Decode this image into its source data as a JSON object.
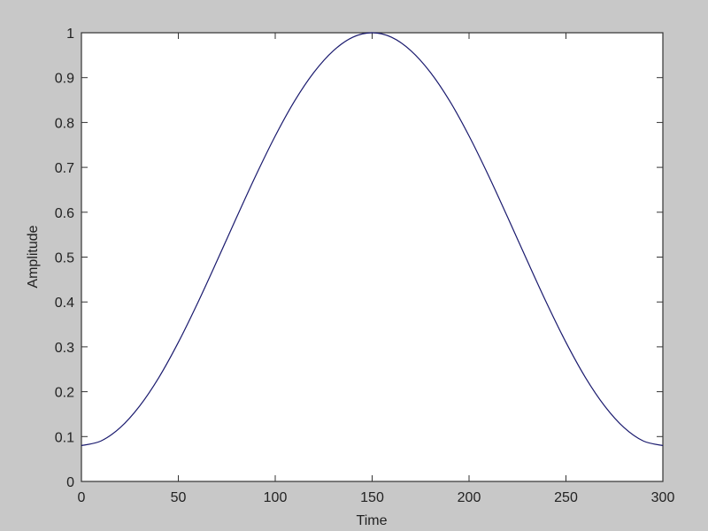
{
  "chart_data": {
    "type": "line",
    "title": "",
    "xlabel": "Time",
    "ylabel": "Amplitude",
    "xlim": [
      0,
      300
    ],
    "ylim": [
      0,
      1
    ],
    "xticks": [
      0,
      50,
      100,
      150,
      200,
      250,
      300
    ],
    "yticks": [
      0,
      0.1,
      0.2,
      0.3,
      0.4,
      0.5,
      0.6,
      0.7,
      0.8,
      0.9,
      1
    ],
    "grid": false,
    "line_color": "#1a1a6e",
    "background": "#c8c8c8",
    "series": [
      {
        "x": [
          0,
          10,
          20,
          30,
          40,
          50,
          60,
          70,
          80,
          90,
          100,
          110,
          120,
          130,
          140,
          150,
          160,
          170,
          180,
          190,
          200,
          210,
          220,
          230,
          240,
          250,
          260,
          270,
          280,
          290,
          300
        ],
        "y": [
          0.08,
          0.09,
          0.12,
          0.168,
          0.232,
          0.31,
          0.398,
          0.492,
          0.588,
          0.682,
          0.77,
          0.848,
          0.912,
          0.96,
          0.99,
          1.0,
          0.99,
          0.96,
          0.912,
          0.848,
          0.77,
          0.682,
          0.588,
          0.492,
          0.398,
          0.31,
          0.232,
          0.168,
          0.12,
          0.09,
          0.08
        ]
      }
    ]
  }
}
